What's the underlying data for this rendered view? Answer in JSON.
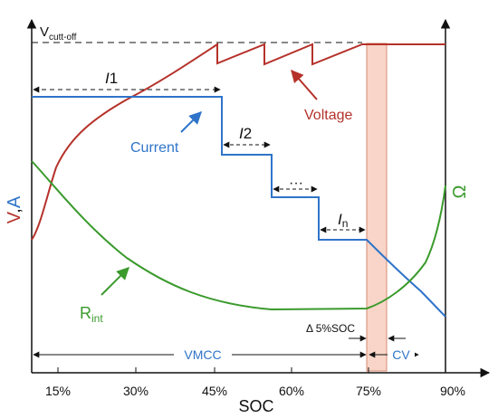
{
  "diagram": {
    "x_axis": {
      "label": "SOC",
      "ticks": [
        "15%",
        "30%",
        "45%",
        "60%",
        "75%",
        "90%"
      ]
    },
    "left_axis_label": {
      "main": "V",
      "sep": ",",
      "sub": "A"
    },
    "right_axis_label": "Ω",
    "top_marker": {
      "main": "V",
      "sub": "cutt-off"
    },
    "curves": {
      "voltage": {
        "label": "Voltage",
        "color": "#b5322a"
      },
      "current": {
        "label": "Current",
        "color": "#2f74c9"
      },
      "resistance": {
        "label_main": "R",
        "label_sub": "int",
        "color": "#3a9a2c"
      }
    },
    "current_steps": {
      "i1": {
        "main": "I",
        "sub": "1"
      },
      "i2": {
        "main": "I",
        "sub": "2"
      },
      "dots": "···",
      "in": {
        "main": "I",
        "sub": "n"
      }
    },
    "delta_label": "Δ 5%SOC",
    "phases": {
      "vmcc": "VMCC",
      "cv": "CV"
    },
    "band_color": "#f8d5c8"
  }
}
